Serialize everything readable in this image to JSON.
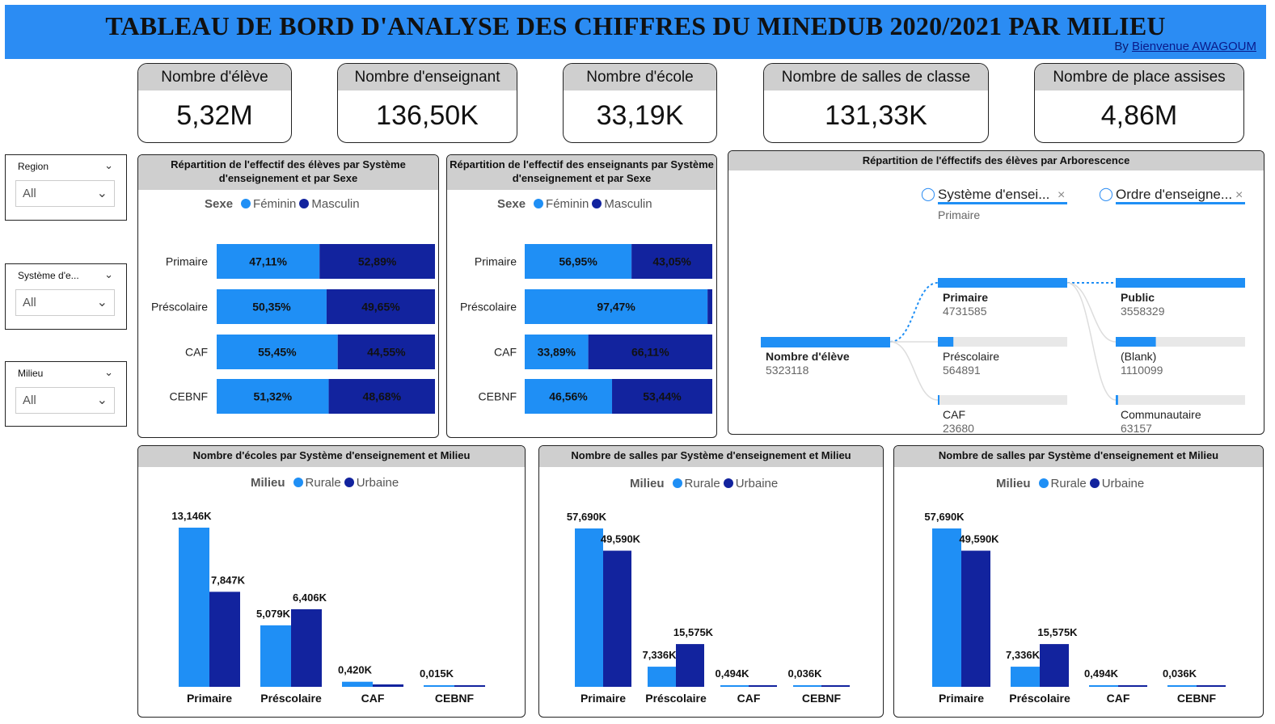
{
  "header": {
    "title": "TABLEAU DE BORD D'ANALYSE DES CHIFFRES DU MINEDUB 2020/2021 PAR MILIEU",
    "by_prefix": "By",
    "author": "Bienvenue AWAGOUM"
  },
  "colors": {
    "light_blue": "#1f8ff5",
    "dark_blue": "#12239e",
    "grey_bar": "#e8e8e8"
  },
  "kpis": [
    {
      "label": "Nombre d'élève",
      "value": "5,32M"
    },
    {
      "label": "Nombre d'enseignant",
      "value": "136,50K"
    },
    {
      "label": "Nombre d'école",
      "value": "33,19K"
    },
    {
      "label": "Nombre de salles de classe",
      "value": "131,33K"
    },
    {
      "label": "Nombre de place assises",
      "value": "4,86M"
    }
  ],
  "slicers": [
    {
      "label": "Region",
      "value": "All"
    },
    {
      "label": "Système d'e...",
      "value": "All"
    },
    {
      "label": "Milieu",
      "value": "All"
    }
  ],
  "decomp": {
    "title": "Répartition de l'éffectifs des élèves par Arborescence",
    "level1_header": "Système d'ensei...",
    "level1_sub": "Primaire",
    "level2_header": "Ordre d'enseigne...",
    "root": {
      "name": "Nombre d'élève",
      "value": "5323118"
    },
    "level1": [
      {
        "name": "Primaire",
        "value": "4731585",
        "share": 1.0
      },
      {
        "name": "Préscolaire",
        "value": "564891",
        "share": 0.12
      },
      {
        "name": "CAF",
        "value": "23680",
        "share": 0.01
      }
    ],
    "level2": [
      {
        "name": "Public",
        "value": "3558329",
        "share": 1.0
      },
      {
        "name": "(Blank)",
        "value": "1110099",
        "share": 0.31
      },
      {
        "name": "Communautaire",
        "value": "63157",
        "share": 0.018
      }
    ]
  },
  "chart_data": [
    {
      "type": "bar",
      "orientation": "horizontal-stacked-100",
      "title": "Répartition de l'effectif des élèves par Système d'enseignement et par Sexe",
      "legend_title": "Sexe",
      "categories": [
        "Primaire",
        "Préscolaire",
        "CAF",
        "CEBNF"
      ],
      "series": [
        {
          "name": "Féminin",
          "values": [
            47.11,
            50.35,
            55.45,
            51.32
          ],
          "labels": [
            "47,11%",
            "50,35%",
            "55,45%",
            "51,32%"
          ]
        },
        {
          "name": "Masculin",
          "values": [
            52.89,
            49.65,
            44.55,
            48.68
          ],
          "labels": [
            "52,89%",
            "49,65%",
            "44,55%",
            "48,68%"
          ]
        }
      ]
    },
    {
      "type": "bar",
      "orientation": "horizontal-stacked-100",
      "title": "Répartition de l'effectif des enseignants par Système d'enseignement et par Sexe",
      "legend_title": "Sexe",
      "categories": [
        "Primaire",
        "Préscolaire",
        "CAF",
        "CEBNF"
      ],
      "series": [
        {
          "name": "Féminin",
          "values": [
            56.95,
            97.47,
            33.89,
            46.56
          ],
          "labels": [
            "56,95%",
            "97,47%",
            "33,89%",
            "46,56%"
          ]
        },
        {
          "name": "Masculin",
          "values": [
            43.05,
            2.53,
            66.11,
            53.44
          ],
          "labels": [
            "43,05%",
            "",
            "66,11%",
            "53,44%"
          ]
        }
      ]
    },
    {
      "type": "bar",
      "title": "Nombre d'écoles par Système d'enseignement et Milieu",
      "legend_title": "Milieu",
      "categories": [
        "Primaire",
        "Préscolaire",
        "CAF",
        "CEBNF"
      ],
      "ylim": [
        0,
        13.146
      ],
      "series": [
        {
          "name": "Rurale",
          "values": [
            13.146,
            5.079,
            0.42,
            0.015
          ],
          "labels": [
            "13,146K",
            "5,079K",
            "0,420K",
            "0,015K"
          ]
        },
        {
          "name": "Urbaine",
          "values": [
            7.847,
            6.406,
            0.2,
            0.01
          ],
          "labels": [
            "7,847K",
            "6,406K",
            "",
            ""
          ]
        }
      ]
    },
    {
      "type": "bar",
      "title": "Nombre de salles par Système d'enseignement et Milieu",
      "legend_title": "Milieu",
      "categories": [
        "Primaire",
        "Préscolaire",
        "CAF",
        "CEBNF"
      ],
      "ylim": [
        0,
        57.69
      ],
      "series": [
        {
          "name": "Rurale",
          "values": [
            57.69,
            7.336,
            0.494,
            0.036
          ],
          "labels": [
            "57,690K",
            "7,336K",
            "0,494K",
            "0,036K"
          ]
        },
        {
          "name": "Urbaine",
          "values": [
            49.59,
            15.575,
            0.3,
            0.03
          ],
          "labels": [
            "49,590K",
            "15,575K",
            "",
            ""
          ]
        }
      ]
    },
    {
      "type": "bar",
      "title": "Nombre de salles par Système d'enseignement et Milieu",
      "legend_title": "Milieu",
      "categories": [
        "Primaire",
        "Préscolaire",
        "CAF",
        "CEBNF"
      ],
      "ylim": [
        0,
        57.69
      ],
      "series": [
        {
          "name": "Rurale",
          "values": [
            57.69,
            7.336,
            0.494,
            0.036
          ],
          "labels": [
            "57,690K",
            "7,336K",
            "0,494K",
            "0,036K"
          ]
        },
        {
          "name": "Urbaine",
          "values": [
            49.59,
            15.575,
            0.3,
            0.03
          ],
          "labels": [
            "49,590K",
            "15,575K",
            "",
            ""
          ]
        }
      ]
    }
  ]
}
